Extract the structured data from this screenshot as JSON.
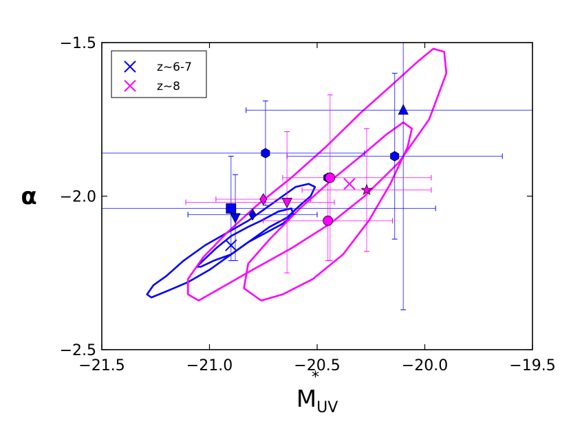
{
  "chart_data": {
    "type": "scatter",
    "title": "",
    "xlabel": "M",
    "xlabel_sub": "UV",
    "xlabel_sup": "*",
    "ylabel": "α",
    "xlim": [
      -21.5,
      -19.5
    ],
    "ylim": [
      -2.5,
      -1.5
    ],
    "x_ticks": [
      -21.5,
      -21.0,
      -20.5,
      -20.0,
      -19.5
    ],
    "x_tick_labels": [
      "−21.5",
      "−21.0",
      "−20.5",
      "−20.0",
      "−19.5"
    ],
    "y_ticks": [
      -2.5,
      -2.0,
      -1.5
    ],
    "y_tick_labels": [
      "−2.5",
      "−2.0",
      "−1.5"
    ],
    "grid": false,
    "legend_position": "top-left",
    "series": [
      {
        "name": "z~6-7",
        "color": "#0000ff",
        "best_fit": {
          "x": -20.9,
          "y": -2.16
        },
        "points": [
          {
            "marker": "square",
            "x": -20.9,
            "y": -2.04,
            "xerr": [
              0.95,
              0.95
            ],
            "yerr": [
              0.17,
              0.17
            ]
          },
          {
            "marker": "triangle-down",
            "x": -20.88,
            "y": -2.07,
            "xerr": [
              0.0,
              0.0
            ],
            "yerr": [
              0.14,
              0.14
            ]
          },
          {
            "marker": "diamond",
            "x": -20.8,
            "y": -2.06,
            "xerr": [
              0.3,
              0.3
            ],
            "yerr": [
              0.0,
              0.0
            ]
          },
          {
            "marker": "hexagon",
            "x": -20.74,
            "y": -1.86,
            "xerr": [
              0.9,
              0.46
            ],
            "yerr": [
              0.17,
              0.17
            ]
          },
          {
            "marker": "hexagon",
            "x": -20.45,
            "y": -1.94,
            "xerr": [
              0.0,
              0.0
            ],
            "yerr": [
              0.0,
              0.0
            ]
          },
          {
            "marker": "hexagon",
            "x": -20.14,
            "y": -1.87,
            "xerr": [
              0.5,
              0.5
            ],
            "yerr": [
              0.27,
              0.27
            ]
          },
          {
            "marker": "triangle-up",
            "x": -20.1,
            "y": -1.72,
            "xerr": [
              0.73,
              0.73
            ],
            "yerr": [
              0.65,
              0.35
            ]
          }
        ],
        "contours": [
          [
            [
              -21.29,
              -2.32
            ],
            [
              -21.26,
              -2.29
            ],
            [
              -21.2,
              -2.26
            ],
            [
              -21.12,
              -2.21
            ],
            [
              -21.02,
              -2.16
            ],
            [
              -20.92,
              -2.12
            ],
            [
              -20.82,
              -2.08
            ],
            [
              -20.74,
              -2.04
            ],
            [
              -20.66,
              -2.0
            ],
            [
              -20.6,
              -1.97
            ],
            [
              -20.54,
              -1.96
            ],
            [
              -20.51,
              -1.97
            ],
            [
              -20.53,
              -2.0
            ],
            [
              -20.58,
              -2.03
            ],
            [
              -20.64,
              -2.07
            ],
            [
              -20.72,
              -2.1
            ],
            [
              -20.8,
              -2.14
            ],
            [
              -20.9,
              -2.19
            ],
            [
              -21.0,
              -2.24
            ],
            [
              -21.1,
              -2.28
            ],
            [
              -21.2,
              -2.31
            ],
            [
              -21.27,
              -2.33
            ],
            [
              -21.29,
              -2.32
            ]
          ],
          [
            [
              -21.06,
              -2.23
            ],
            [
              -21.03,
              -2.21
            ],
            [
              -20.97,
              -2.17
            ],
            [
              -20.9,
              -2.13
            ],
            [
              -20.82,
              -2.1
            ],
            [
              -20.76,
              -2.08
            ],
            [
              -20.68,
              -2.05
            ],
            [
              -20.62,
              -2.04
            ],
            [
              -20.61,
              -2.06
            ],
            [
              -20.66,
              -2.09
            ],
            [
              -20.74,
              -2.12
            ],
            [
              -20.82,
              -2.15
            ],
            [
              -20.9,
              -2.19
            ],
            [
              -20.98,
              -2.21
            ],
            [
              -21.04,
              -2.23
            ],
            [
              -21.06,
              -2.23
            ]
          ]
        ]
      },
      {
        "name": "z~8",
        "color": "#ff00ff",
        "best_fit": {
          "x": -20.35,
          "y": -1.96
        },
        "points": [
          {
            "marker": "diamond",
            "x": -20.75,
            "y": -2.01,
            "xerr": [
              0.22,
              0.22
            ],
            "yerr": [
              0.0,
              0.0
            ]
          },
          {
            "marker": "triangle-down",
            "x": -20.64,
            "y": -2.02,
            "xerr": [
              0.47,
              0.22
            ],
            "yerr": [
              0.23,
              0.23
            ]
          },
          {
            "marker": "circle",
            "x": -20.44,
            "y": -1.94,
            "xerr": [
              0.22,
              0.47
            ],
            "yerr": [
              0.27,
              0.27
            ]
          },
          {
            "marker": "circle",
            "x": -20.45,
            "y": -2.08,
            "xerr": [
              0.3,
              0.3
            ],
            "yerr": [
              0.13,
              0.13
            ]
          },
          {
            "marker": "star",
            "x": -20.27,
            "y": -1.98,
            "xerr": [
              0.3,
              0.3
            ],
            "yerr": [
              0.2,
              0.2
            ]
          }
        ],
        "contours": [
          [
            [
              -21.05,
              -2.34
            ],
            [
              -20.95,
              -2.3
            ],
            [
              -20.8,
              -2.24
            ],
            [
              -20.62,
              -2.17
            ],
            [
              -20.44,
              -2.09
            ],
            [
              -20.28,
              -2.0
            ],
            [
              -20.12,
              -1.89
            ],
            [
              -19.98,
              -1.75
            ],
            [
              -19.9,
              -1.6
            ],
            [
              -19.91,
              -1.53
            ],
            [
              -19.96,
              -1.52
            ],
            [
              -20.03,
              -1.56
            ],
            [
              -20.14,
              -1.63
            ],
            [
              -20.3,
              -1.73
            ],
            [
              -20.46,
              -1.84
            ],
            [
              -20.62,
              -1.94
            ],
            [
              -20.78,
              -2.03
            ],
            [
              -20.92,
              -2.12
            ],
            [
              -21.03,
              -2.2
            ],
            [
              -21.1,
              -2.27
            ],
            [
              -21.1,
              -2.32
            ],
            [
              -21.05,
              -2.34
            ]
          ],
          [
            [
              -20.76,
              -2.34
            ],
            [
              -20.66,
              -2.32
            ],
            [
              -20.52,
              -2.27
            ],
            [
              -20.38,
              -2.19
            ],
            [
              -20.26,
              -2.08
            ],
            [
              -20.16,
              -1.96
            ],
            [
              -20.08,
              -1.84
            ],
            [
              -20.06,
              -1.78
            ],
            [
              -20.1,
              -1.76
            ],
            [
              -20.18,
              -1.8
            ],
            [
              -20.28,
              -1.86
            ],
            [
              -20.42,
              -1.94
            ],
            [
              -20.58,
              -2.04
            ],
            [
              -20.72,
              -2.14
            ],
            [
              -20.82,
              -2.22
            ],
            [
              -20.84,
              -2.3
            ],
            [
              -20.76,
              -2.34
            ]
          ]
        ]
      }
    ]
  }
}
